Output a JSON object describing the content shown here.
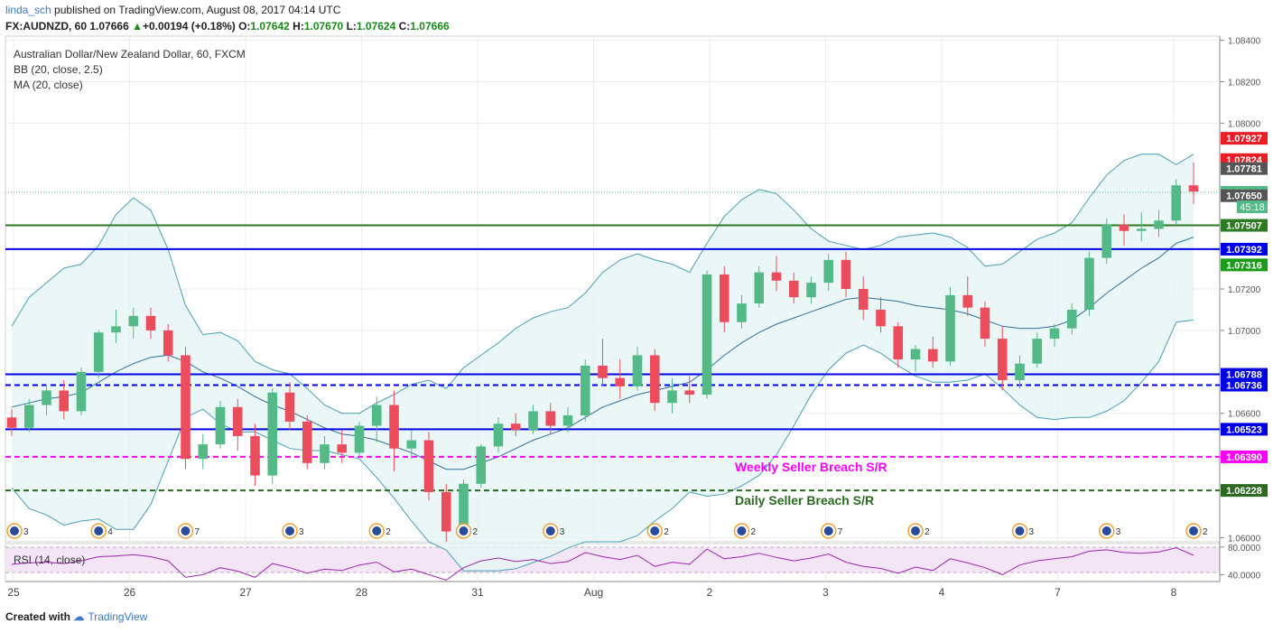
{
  "header": {
    "user": "linda_sch",
    "published": "published on TradingView.com, August 08, 2017 04:14 UTC",
    "symbol": "FX:AUDNZD, 60",
    "last": "1.07666",
    "change": "+0.00194 (+0.18%)",
    "o_label": "O:",
    "o": "1.07642",
    "h_label": "H:",
    "h": "1.07670",
    "l_label": "L:",
    "l": "1.07624",
    "c_label": "C:",
    "c": "1.07666"
  },
  "legend": {
    "title": "Australian Dollar/New Zealand Dollar, 60, FXCM",
    "bb": "BB (20, close, 2.5)",
    "ma": "MA (20, close)",
    "rsi": "RSI (14, close)"
  },
  "footer": {
    "created": "Created with",
    "brand": "TradingView"
  },
  "colors": {
    "up": "#53b987",
    "down": "#eb4d5c",
    "band": "#4a9fb5",
    "ma": "#2f6f99",
    "blue_line": "#0000e6",
    "green_line": "#2c7a22",
    "magenta": "#ff00ff",
    "dark_green": "#2c6a22",
    "rsi": "#9c27b0"
  },
  "chart_data": {
    "type": "candlestick",
    "price_axis": {
      "ticks": [
        "1.08400",
        "1.08200",
        "1.08000",
        "1.07200",
        "1.07000",
        "1.06600",
        "1.06000"
      ],
      "ylim": [
        1.0598,
        1.0842
      ]
    },
    "x_axis": {
      "ticks": [
        "25",
        "26",
        "27",
        "28",
        "31",
        "Aug",
        "2",
        "3",
        "4",
        "7",
        "8"
      ]
    },
    "candles": [
      [
        1.0658,
        1.0662,
        1.0649,
        1.0653
      ],
      [
        1.0653,
        1.0667,
        1.0651,
        1.0664
      ],
      [
        1.0664,
        1.0674,
        1.0659,
        1.0671
      ],
      [
        1.0671,
        1.0676,
        1.0657,
        1.0661
      ],
      [
        1.0661,
        1.0682,
        1.0659,
        1.068
      ],
      [
        1.068,
        1.07,
        1.0677,
        1.0699
      ],
      [
        1.0699,
        1.071,
        1.0694,
        1.0702
      ],
      [
        1.0702,
        1.0711,
        1.0696,
        1.0707
      ],
      [
        1.0707,
        1.0711,
        1.0696,
        1.07
      ],
      [
        1.07,
        1.0703,
        1.0685,
        1.0688
      ],
      [
        1.0688,
        1.0692,
        1.0633,
        1.0638
      ],
      [
        1.0638,
        1.065,
        1.0633,
        1.0645
      ],
      [
        1.0645,
        1.0666,
        1.0643,
        1.0663
      ],
      [
        1.0663,
        1.0667,
        1.0642,
        1.0649
      ],
      [
        1.0649,
        1.0655,
        1.0625,
        1.063
      ],
      [
        1.063,
        1.0672,
        1.0626,
        1.067
      ],
      [
        1.067,
        1.0675,
        1.0652,
        1.0656
      ],
      [
        1.0656,
        1.0659,
        1.0633,
        1.0636
      ],
      [
        1.0636,
        1.0649,
        1.0633,
        1.0645
      ],
      [
        1.0645,
        1.0652,
        1.0636,
        1.0641
      ],
      [
        1.0641,
        1.0656,
        1.0639,
        1.0654
      ],
      [
        1.0654,
        1.0668,
        1.0646,
        1.0664
      ],
      [
        1.0664,
        1.0671,
        1.0632,
        1.0643
      ],
      [
        1.0643,
        1.0652,
        1.0638,
        1.0647
      ],
      [
        1.0647,
        1.0651,
        1.0618,
        1.0622
      ],
      [
        1.0622,
        1.0626,
        1.0598,
        1.0603
      ],
      [
        1.0603,
        1.0628,
        1.0601,
        1.0626
      ],
      [
        1.0626,
        1.0645,
        1.0624,
        1.0644
      ],
      [
        1.0644,
        1.0658,
        1.0641,
        1.0655
      ],
      [
        1.0655,
        1.066,
        1.0649,
        1.0652
      ],
      [
        1.0652,
        1.0664,
        1.065,
        1.0661
      ],
      [
        1.0661,
        1.0665,
        1.065,
        1.0654
      ],
      [
        1.0654,
        1.0663,
        1.0651,
        1.0659
      ],
      [
        1.0659,
        1.0686,
        1.0656,
        1.0683
      ],
      [
        1.0683,
        1.0696,
        1.0673,
        1.0677
      ],
      [
        1.0677,
        1.0686,
        1.0667,
        1.0673
      ],
      [
        1.0673,
        1.0692,
        1.0671,
        1.0688
      ],
      [
        1.0688,
        1.0691,
        1.0661,
        1.0665
      ],
      [
        1.0665,
        1.0677,
        1.066,
        1.0671
      ],
      [
        1.0671,
        1.0678,
        1.0665,
        1.0669
      ],
      [
        1.0669,
        1.0729,
        1.0667,
        1.0727
      ],
      [
        1.0727,
        1.0731,
        1.0699,
        1.0704
      ],
      [
        1.0704,
        1.0717,
        1.0701,
        1.0713
      ],
      [
        1.0713,
        1.0731,
        1.0711,
        1.0728
      ],
      [
        1.0728,
        1.0736,
        1.0719,
        1.0724
      ],
      [
        1.0724,
        1.0728,
        1.0713,
        1.0716
      ],
      [
        1.0716,
        1.0726,
        1.0713,
        1.0723
      ],
      [
        1.0723,
        1.0737,
        1.0719,
        1.0734
      ],
      [
        1.0734,
        1.0738,
        1.0716,
        1.072
      ],
      [
        1.072,
        1.0726,
        1.0705,
        1.071
      ],
      [
        1.071,
        1.0716,
        1.0699,
        1.0702
      ],
      [
        1.0702,
        1.0704,
        1.0682,
        1.0686
      ],
      [
        1.0686,
        1.0693,
        1.068,
        1.0691
      ],
      [
        1.0691,
        1.0697,
        1.0682,
        1.0685
      ],
      [
        1.0685,
        1.0721,
        1.0683,
        1.0717
      ],
      [
        1.0717,
        1.0726,
        1.0707,
        1.0711
      ],
      [
        1.0711,
        1.0714,
        1.0692,
        1.0696
      ],
      [
        1.0696,
        1.0702,
        1.0671,
        1.0676
      ],
      [
        1.0676,
        1.0688,
        1.0672,
        1.0684
      ],
      [
        1.0684,
        1.0699,
        1.0682,
        1.0696
      ],
      [
        1.0696,
        1.0703,
        1.0692,
        1.0701
      ],
      [
        1.0701,
        1.0713,
        1.0698,
        1.071
      ],
      [
        1.071,
        1.0738,
        1.0707,
        1.0735
      ],
      [
        1.0735,
        1.0754,
        1.0732,
        1.0751
      ],
      [
        1.0751,
        1.0756,
        1.0741,
        1.0748
      ],
      [
        1.0748,
        1.0757,
        1.0743,
        1.0749
      ],
      [
        1.0749,
        1.0758,
        1.0745,
        1.0753
      ],
      [
        1.0753,
        1.0773,
        1.0751,
        1.077
      ],
      [
        1.077,
        1.0781,
        1.0761,
        1.0767
      ]
    ],
    "bollinger": {
      "upper": [
        1.0702,
        1.0716,
        1.0723,
        1.073,
        1.0732,
        1.0741,
        1.0756,
        1.0764,
        1.0758,
        1.0739,
        1.0712,
        1.0698,
        1.0699,
        1.0695,
        1.0685,
        1.0681,
        1.0679,
        1.0672,
        1.0664,
        1.066,
        1.066,
        1.0665,
        1.0669,
        1.0674,
        1.0676,
        1.0672,
        1.0682,
        1.0688,
        1.0694,
        1.0701,
        1.0706,
        1.0709,
        1.0711,
        1.0718,
        1.0728,
        1.0734,
        1.0737,
        1.0734,
        1.0732,
        1.0728,
        1.0742,
        1.0755,
        1.0763,
        1.0768,
        1.0766,
        1.0758,
        1.0749,
        1.0743,
        1.0741,
        1.0739,
        1.0741,
        1.0745,
        1.0746,
        1.0747,
        1.0745,
        1.074,
        1.0731,
        1.0732,
        1.0738,
        1.0744,
        1.0747,
        1.0752,
        1.0764,
        1.0775,
        1.0782,
        1.0785,
        1.0785,
        1.078,
        1.0785
      ],
      "middle": [
        1.0663,
        1.0665,
        1.0667,
        1.0668,
        1.067,
        1.0675,
        1.068,
        1.0684,
        1.0687,
        1.0688,
        1.0685,
        1.068,
        1.0677,
        1.0673,
        1.0668,
        1.0664,
        1.0661,
        1.0657,
        1.0653,
        1.065,
        1.0649,
        1.0647,
        1.0644,
        1.0641,
        1.0637,
        1.0633,
        1.0633,
        1.0636,
        1.0639,
        1.0643,
        1.0647,
        1.065,
        1.0653,
        1.0658,
        1.0663,
        1.0666,
        1.0669,
        1.0671,
        1.0673,
        1.0675,
        1.0681,
        1.0688,
        1.0694,
        1.0699,
        1.0703,
        1.0706,
        1.0709,
        1.0712,
        1.0715,
        1.0716,
        1.0715,
        1.0714,
        1.0712,
        1.0711,
        1.071,
        1.0708,
        1.0705,
        1.0702,
        1.0701,
        1.0701,
        1.0702,
        1.0705,
        1.0711,
        1.0718,
        1.0724,
        1.073,
        1.0735,
        1.0742,
        1.0745
      ],
      "lower": [
        1.0624,
        1.0614,
        1.0611,
        1.0606,
        1.0608,
        1.0609,
        1.0604,
        1.0604,
        1.0616,
        1.0637,
        1.0658,
        1.0662,
        1.0655,
        1.0651,
        1.0651,
        1.0647,
        1.0643,
        1.0642,
        1.0642,
        1.064,
        1.0638,
        1.0629,
        1.0619,
        1.0608,
        1.0598,
        1.0594,
        1.0584,
        1.0584,
        1.0584,
        1.0585,
        1.0588,
        1.0591,
        1.0595,
        1.0598,
        1.0598,
        1.0598,
        1.0601,
        1.0608,
        1.0614,
        1.0622,
        1.062,
        1.0621,
        1.0625,
        1.063,
        1.064,
        1.0654,
        1.0669,
        1.0681,
        1.0689,
        1.0693,
        1.0689,
        1.0683,
        1.0678,
        1.0675,
        1.0675,
        1.0676,
        1.0679,
        1.0672,
        1.0664,
        1.0658,
        1.0657,
        1.0658,
        1.0658,
        1.0661,
        1.0666,
        1.0675,
        1.0685,
        1.0704,
        1.0705
      ]
    },
    "rsi": [
      55,
      57,
      58,
      56,
      60,
      66,
      67,
      69,
      66,
      60,
      36,
      40,
      50,
      45,
      36,
      56,
      50,
      42,
      48,
      46,
      54,
      58,
      44,
      48,
      40,
      32,
      50,
      60,
      64,
      59,
      62,
      56,
      59,
      72,
      66,
      62,
      68,
      52,
      58,
      55,
      77,
      63,
      66,
      71,
      65,
      60,
      64,
      70,
      58,
      52,
      49,
      42,
      51,
      46,
      63,
      57,
      50,
      40,
      54,
      60,
      63,
      66,
      74,
      76,
      72,
      71,
      73,
      79,
      68
    ],
    "rsi_axis": {
      "ticks": [
        "80.0000",
        "40.0000"
      ],
      "ylim": [
        30,
        85
      ]
    },
    "levels": [
      {
        "value": 1.07507,
        "label": "1.07507",
        "color": "#2c7a22",
        "style": "solid"
      },
      {
        "value": 1.07392,
        "label": "1.07392",
        "color": "#0000e6",
        "style": "solid"
      },
      {
        "value": 1.06788,
        "label": "1.06788",
        "color": "#0000e6",
        "style": "solid"
      },
      {
        "value": 1.06736,
        "label": "1.06736",
        "color": "#0000e6",
        "style": "dashed"
      },
      {
        "value": 1.06523,
        "label": "1.06523",
        "color": "#0000e6",
        "style": "solid"
      },
      {
        "value": 1.0639,
        "label": "1.06390",
        "color": "#ff00ff",
        "style": "dashed",
        "text": "Weekly Seller Breach S/R"
      },
      {
        "value": 1.06228,
        "label": "1.06228",
        "color": "#2c6a22",
        "style": "dashed",
        "text": "Daily Seller Breach S/R"
      }
    ],
    "price_labels": [
      {
        "value": 1.07927,
        "label": "1.07927",
        "bg": "#eb1c24"
      },
      {
        "value": 1.07824,
        "label": "1.07824",
        "bg": "#eb1c24"
      },
      {
        "value": 1.07781,
        "label": "1.07781",
        "bg": "#555555"
      },
      {
        "value": 1.07666,
        "label": "1.07666",
        "bg": "#53b987"
      },
      {
        "value": 1.0765,
        "label": "1.07650",
        "bg": "#555555"
      },
      {
        "value": 1.07316,
        "label": "1.07316",
        "bg": "#1a9b1a"
      }
    ],
    "countdown": "45:18",
    "events": {
      "counts": [
        "3",
        "4",
        "7",
        "3",
        "2",
        "2",
        "3",
        "2",
        "2",
        "7",
        "2",
        "3",
        "3",
        "2"
      ]
    }
  }
}
